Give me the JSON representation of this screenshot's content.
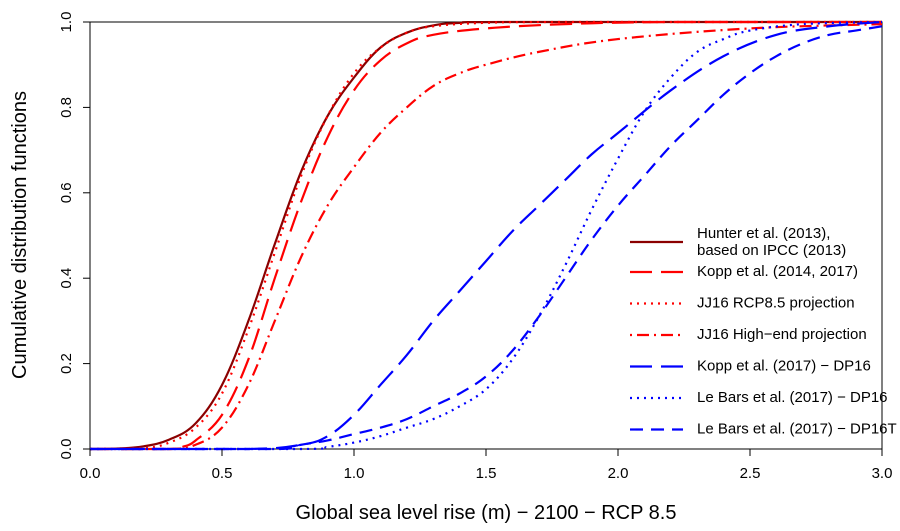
{
  "chart_data": {
    "type": "line",
    "xlabel": "Global sea level rise (m) − 2100 − RCP 8.5",
    "ylabel": "Cumulative distribution functions",
    "xlim": [
      0,
      3
    ],
    "ylim": [
      0,
      1
    ],
    "xticks": [
      0,
      0.5,
      1,
      1.5,
      2,
      2.5,
      3
    ],
    "xtick_labels": [
      "0.0",
      "0.5",
      "1.0",
      "1.5",
      "2.0",
      "2.5",
      "3.0"
    ],
    "yticks": [
      0,
      0.2,
      0.4,
      0.6,
      0.8,
      1
    ],
    "ytick_labels": [
      "0.0",
      "0.2",
      "0.4",
      "0.6",
      "0.8",
      "1.0"
    ],
    "grid": false,
    "legend_position": "right",
    "series": [
      {
        "name": "Hunter et al. (2013),\nbased on IPCC (2013)",
        "color": "#8b0000",
        "dash": "solid",
        "points": [
          [
            0,
            0
          ],
          [
            0.1,
            0.001
          ],
          [
            0.2,
            0.006
          ],
          [
            0.3,
            0.022
          ],
          [
            0.4,
            0.06
          ],
          [
            0.5,
            0.15
          ],
          [
            0.6,
            0.3
          ],
          [
            0.7,
            0.48
          ],
          [
            0.8,
            0.65
          ],
          [
            0.9,
            0.78
          ],
          [
            1.0,
            0.87
          ],
          [
            1.1,
            0.94
          ],
          [
            1.2,
            0.975
          ],
          [
            1.3,
            0.992
          ],
          [
            1.4,
            0.998
          ],
          [
            1.6,
            1.0
          ],
          [
            3.0,
            1.0
          ]
        ]
      },
      {
        "name": "Kopp et al. (2014, 2017)",
        "color": "#ff0000",
        "dash": "longdash",
        "points": [
          [
            0,
            0
          ],
          [
            0.3,
            0
          ],
          [
            0.35,
            0.005
          ],
          [
            0.4,
            0.02
          ],
          [
            0.5,
            0.08
          ],
          [
            0.6,
            0.21
          ],
          [
            0.7,
            0.4
          ],
          [
            0.8,
            0.58
          ],
          [
            0.9,
            0.73
          ],
          [
            1.0,
            0.84
          ],
          [
            1.1,
            0.91
          ],
          [
            1.2,
            0.95
          ],
          [
            1.3,
            0.97
          ],
          [
            1.5,
            0.985
          ],
          [
            1.8,
            0.995
          ],
          [
            2.2,
            1.0
          ],
          [
            3.0,
            1.0
          ]
        ]
      },
      {
        "name": "JJ16 RCP8.5 projection",
        "color": "#ff0000",
        "dash": "dotted",
        "points": [
          [
            0,
            0
          ],
          [
            0.2,
            0.002
          ],
          [
            0.3,
            0.015
          ],
          [
            0.4,
            0.05
          ],
          [
            0.5,
            0.13
          ],
          [
            0.6,
            0.28
          ],
          [
            0.7,
            0.46
          ],
          [
            0.8,
            0.64
          ],
          [
            0.9,
            0.78
          ],
          [
            1.0,
            0.88
          ],
          [
            1.1,
            0.94
          ],
          [
            1.2,
            0.975
          ],
          [
            1.3,
            0.99
          ],
          [
            1.5,
            0.998
          ],
          [
            1.8,
            1.0
          ],
          [
            3.0,
            1.0
          ]
        ]
      },
      {
        "name": "JJ16 High−end projection",
        "color": "#ff0000",
        "dash": "dotdash",
        "points": [
          [
            0,
            0
          ],
          [
            0.3,
            0
          ],
          [
            0.4,
            0.01
          ],
          [
            0.5,
            0.05
          ],
          [
            0.6,
            0.15
          ],
          [
            0.7,
            0.3
          ],
          [
            0.8,
            0.45
          ],
          [
            0.9,
            0.57
          ],
          [
            1.0,
            0.66
          ],
          [
            1.1,
            0.74
          ],
          [
            1.2,
            0.8
          ],
          [
            1.3,
            0.85
          ],
          [
            1.4,
            0.88
          ],
          [
            1.5,
            0.9
          ],
          [
            1.7,
            0.93
          ],
          [
            2.0,
            0.96
          ],
          [
            2.5,
            0.985
          ],
          [
            3.0,
            0.995
          ]
        ]
      },
      {
        "name": "Kopp et al. (2017) − DP16",
        "color": "#0000ff",
        "dash": "longdash",
        "points": [
          [
            0,
            0
          ],
          [
            0.6,
            0
          ],
          [
            0.8,
            0.01
          ],
          [
            0.9,
            0.03
          ],
          [
            1.0,
            0.08
          ],
          [
            1.1,
            0.15
          ],
          [
            1.2,
            0.22
          ],
          [
            1.3,
            0.3
          ],
          [
            1.4,
            0.37
          ],
          [
            1.5,
            0.44
          ],
          [
            1.6,
            0.51
          ],
          [
            1.7,
            0.57
          ],
          [
            1.8,
            0.63
          ],
          [
            1.9,
            0.69
          ],
          [
            2.0,
            0.74
          ],
          [
            2.2,
            0.84
          ],
          [
            2.4,
            0.92
          ],
          [
            2.6,
            0.97
          ],
          [
            2.8,
            0.99
          ],
          [
            3.0,
            1.0
          ]
        ]
      },
      {
        "name": "Le Bars et al. (2017) − DP16",
        "color": "#0000ff",
        "dash": "dotted",
        "points": [
          [
            0,
            0
          ],
          [
            0.8,
            0
          ],
          [
            0.9,
            0.005
          ],
          [
            1.0,
            0.015
          ],
          [
            1.1,
            0.03
          ],
          [
            1.2,
            0.05
          ],
          [
            1.3,
            0.07
          ],
          [
            1.4,
            0.1
          ],
          [
            1.5,
            0.14
          ],
          [
            1.6,
            0.21
          ],
          [
            1.7,
            0.31
          ],
          [
            1.8,
            0.43
          ],
          [
            1.9,
            0.56
          ],
          [
            2.0,
            0.68
          ],
          [
            2.1,
            0.79
          ],
          [
            2.2,
            0.87
          ],
          [
            2.3,
            0.93
          ],
          [
            2.4,
            0.96
          ],
          [
            2.5,
            0.98
          ],
          [
            2.7,
            0.995
          ],
          [
            3.0,
            1.0
          ]
        ]
      },
      {
        "name": "Le Bars et al. (2017) − DP16T",
        "color": "#0000ff",
        "dash": "dashed",
        "points": [
          [
            0,
            0
          ],
          [
            0.7,
            0
          ],
          [
            0.8,
            0.01
          ],
          [
            0.9,
            0.02
          ],
          [
            1.0,
            0.035
          ],
          [
            1.1,
            0.05
          ],
          [
            1.2,
            0.07
          ],
          [
            1.3,
            0.1
          ],
          [
            1.4,
            0.13
          ],
          [
            1.5,
            0.17
          ],
          [
            1.6,
            0.23
          ],
          [
            1.7,
            0.31
          ],
          [
            1.8,
            0.4
          ],
          [
            1.9,
            0.49
          ],
          [
            2.0,
            0.57
          ],
          [
            2.1,
            0.64
          ],
          [
            2.2,
            0.71
          ],
          [
            2.3,
            0.77
          ],
          [
            2.4,
            0.83
          ],
          [
            2.5,
            0.88
          ],
          [
            2.6,
            0.92
          ],
          [
            2.7,
            0.95
          ],
          [
            2.8,
            0.97
          ],
          [
            2.9,
            0.98
          ],
          [
            3.0,
            0.99
          ]
        ]
      }
    ]
  }
}
